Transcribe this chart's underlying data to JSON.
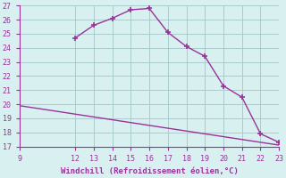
{
  "xlabel": "Windchill (Refroidissement éolien,°C)",
  "x_main": [
    12,
    13,
    14,
    15,
    16,
    17,
    18,
    19,
    20,
    21,
    22,
    23
  ],
  "y_main": [
    24.7,
    25.6,
    26.1,
    26.7,
    26.8,
    25.1,
    24.1,
    23.4,
    21.3,
    20.5,
    17.9,
    17.3
  ],
  "x_lower": [
    9,
    10,
    11,
    12,
    13,
    14,
    15,
    16,
    17,
    18,
    19,
    20,
    21,
    22,
    23
  ],
  "y_lower": [
    19.9,
    19.7,
    19.5,
    19.3,
    19.1,
    18.9,
    18.7,
    18.5,
    18.3,
    18.1,
    17.9,
    17.7,
    17.5,
    17.3,
    17.1
  ],
  "line_color": "#993399",
  "bg_color": "#d8f0f0",
  "grid_color": "#aacccc",
  "text_color": "#993399",
  "xlim": [
    9,
    23
  ],
  "ylim": [
    17,
    27
  ],
  "xticks": [
    9,
    12,
    13,
    14,
    15,
    16,
    17,
    18,
    19,
    20,
    21,
    22,
    23
  ],
  "yticks": [
    17,
    18,
    19,
    20,
    21,
    22,
    23,
    24,
    25,
    26,
    27
  ],
  "marker": "+",
  "markersize": 5,
  "linewidth": 1.0
}
